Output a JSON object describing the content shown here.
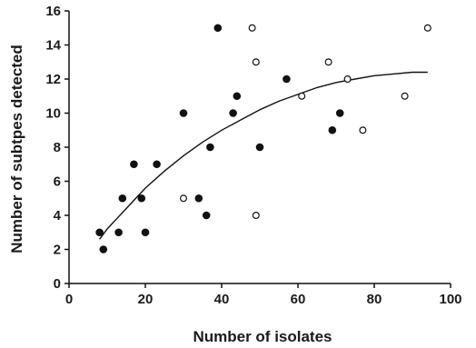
{
  "chart_data": {
    "type": "scatter",
    "title": "",
    "xlabel": "Number of isolates",
    "ylabel": "Number of subtpes detected",
    "xlim": [
      0,
      100
    ],
    "ylim": [
      0,
      16
    ],
    "xticks": [
      0,
      20,
      40,
      60,
      80,
      100
    ],
    "yticks": [
      0,
      2,
      4,
      6,
      8,
      10,
      12,
      14,
      16
    ],
    "grid": false,
    "legend": "none",
    "series": [
      {
        "marker": "filled-circle",
        "color": "#111111",
        "points": [
          [
            8,
            3
          ],
          [
            9,
            2
          ],
          [
            13,
            3
          ],
          [
            14,
            5
          ],
          [
            17,
            7
          ],
          [
            19,
            5
          ],
          [
            20,
            3
          ],
          [
            23,
            7
          ],
          [
            30,
            10
          ],
          [
            34,
            5
          ],
          [
            36,
            4
          ],
          [
            37,
            8
          ],
          [
            39,
            15
          ],
          [
            43,
            10
          ],
          [
            44,
            11
          ],
          [
            50,
            8
          ],
          [
            57,
            12
          ],
          [
            69,
            9
          ],
          [
            71,
            10
          ]
        ]
      },
      {
        "marker": "open-circle",
        "color": "#111111",
        "points": [
          [
            30,
            5
          ],
          [
            48,
            15
          ],
          [
            49,
            13
          ],
          [
            49,
            4
          ],
          [
            61,
            11
          ],
          [
            68,
            13
          ],
          [
            73,
            12
          ],
          [
            77,
            9
          ],
          [
            88,
            11
          ],
          [
            94,
            15
          ]
        ]
      }
    ],
    "trendline": {
      "type": "curve",
      "color": "#111111",
      "points": [
        [
          8,
          2.6
        ],
        [
          10,
          3.2
        ],
        [
          15,
          4.4
        ],
        [
          20,
          5.6
        ],
        [
          25,
          6.6
        ],
        [
          30,
          7.5
        ],
        [
          35,
          8.3
        ],
        [
          40,
          9.0
        ],
        [
          45,
          9.6
        ],
        [
          50,
          10.2
        ],
        [
          55,
          10.7
        ],
        [
          60,
          11.1
        ],
        [
          65,
          11.5
        ],
        [
          70,
          11.8
        ],
        [
          75,
          12.0
        ],
        [
          80,
          12.2
        ],
        [
          85,
          12.3
        ],
        [
          90,
          12.4
        ],
        [
          94,
          12.4
        ]
      ]
    }
  }
}
